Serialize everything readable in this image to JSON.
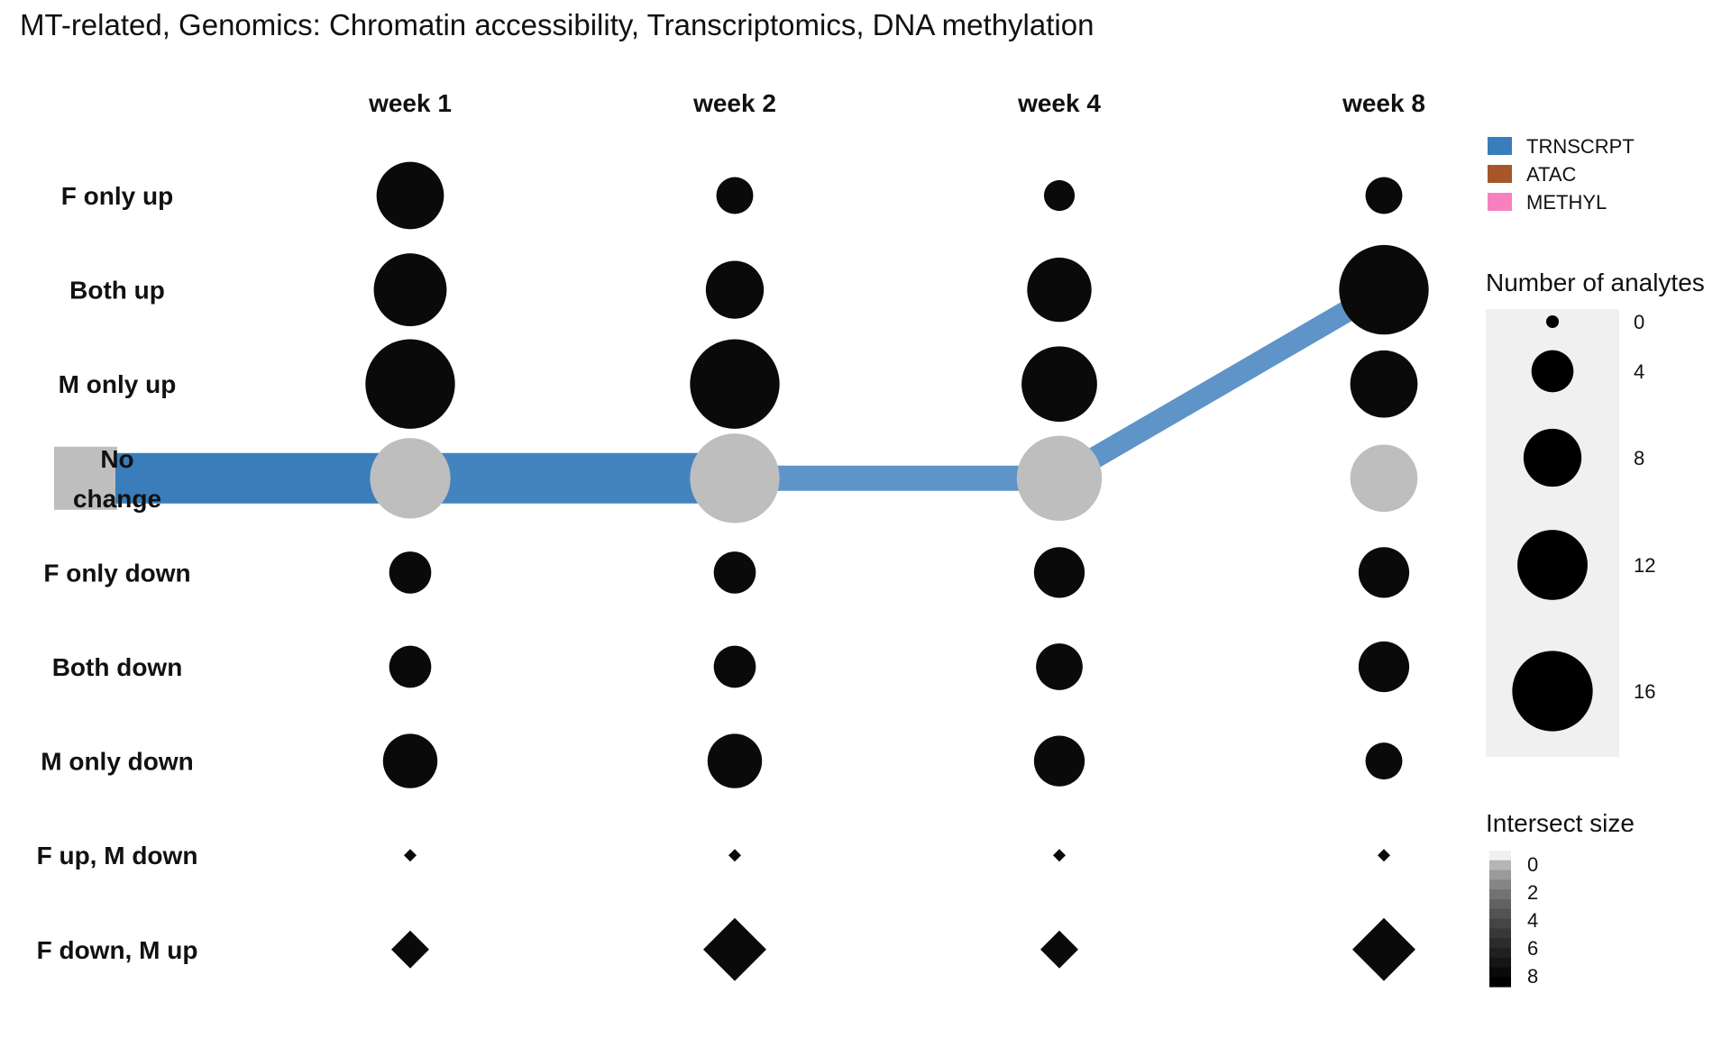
{
  "chart_data": {
    "type": "alluvial-dot",
    "title": "MT-related, Genomics: Chromatin accessibility, Transcriptomics, DNA methylation",
    "timepoints": [
      "week 1",
      "week 2",
      "week 4",
      "week 8"
    ],
    "categories": [
      "F only up",
      "Both up",
      "M only up",
      "No change",
      "F only down",
      "Both down",
      "M only down",
      "F up, M down",
      "F down, M up"
    ],
    "no_change_label_lines": [
      "No",
      "change"
    ],
    "no_change_category": "No change",
    "opposite_direction_categories": [
      "F up, M down",
      "F down, M up"
    ],
    "analyte_counts": [
      {
        "category": "F only up",
        "values": [
          11,
          3,
          2,
          3
        ]
      },
      {
        "category": "Both up",
        "values": [
          13,
          8,
          10,
          20
        ]
      },
      {
        "category": "M only up",
        "values": [
          20,
          20,
          14,
          11
        ]
      },
      {
        "category": "No change",
        "values": [
          16,
          20,
          18,
          11
        ]
      },
      {
        "category": "F only down",
        "values": [
          4,
          4,
          6,
          6
        ]
      },
      {
        "category": "Both down",
        "values": [
          4,
          4,
          5,
          6
        ]
      },
      {
        "category": "M only down",
        "values": [
          7,
          7,
          6,
          3
        ]
      },
      {
        "category": "F up, M down",
        "values": [
          0,
          0,
          0,
          0
        ]
      },
      {
        "category": "F down, M up",
        "values": [
          1,
          2,
          1,
          2
        ]
      }
    ],
    "flows": [
      {
        "series": "TRNSCRPT",
        "from": "week 1",
        "to": "week 2",
        "from_category": "No change",
        "to_category": "No change",
        "size": 8
      },
      {
        "series": "TRNSCRPT",
        "from": "week 2",
        "to": "week 4",
        "from_category": "No change",
        "to_category": "No change",
        "size": 4
      },
      {
        "series": "TRNSCRPT",
        "from": "week 4",
        "to": "week 8",
        "from_category": "No change",
        "to_category": "Both up",
        "size": 4
      }
    ],
    "legend": {
      "series": [
        {
          "name": "TRNSCRPT",
          "color": "#3a7dbb"
        },
        {
          "name": "ATAC",
          "color": "#a65628"
        },
        {
          "name": "METHYL",
          "color": "#f781bf"
        }
      ],
      "size_title": "Number of analytes",
      "size_breaks": [
        0,
        4,
        8,
        12,
        16
      ],
      "intersect_title": "Intersect size",
      "intersect_breaks": [
        0,
        2,
        4,
        6,
        8
      ]
    },
    "colors": {
      "dot": "#0a0a0a",
      "no_change_dot": "#bebebe",
      "flow": "#3a7dbb",
      "legend_panel": "#f0f0f0"
    }
  }
}
